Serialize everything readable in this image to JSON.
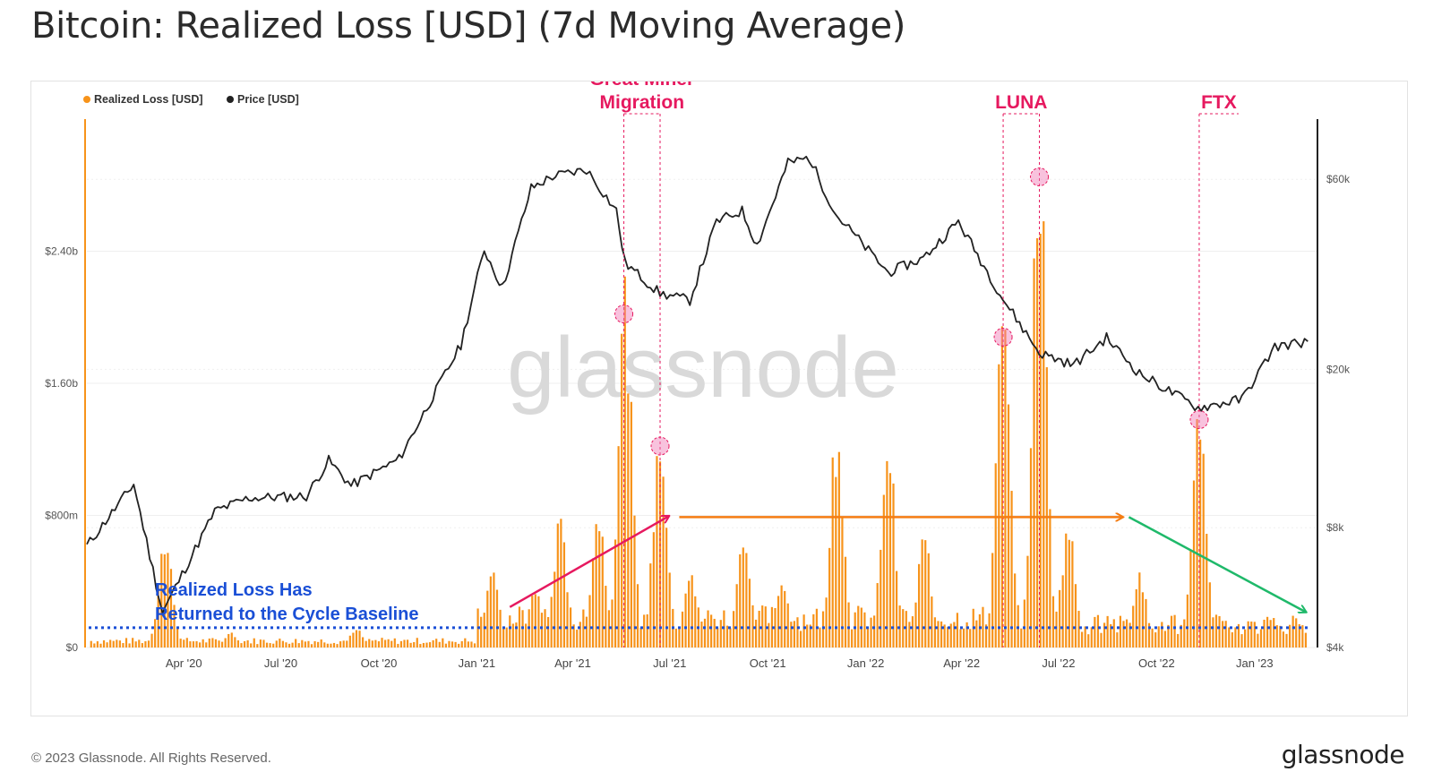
{
  "page": {
    "title": "Bitcoin: Realized Loss [USD] (7d Moving Average)",
    "footer": "© 2023 Glassnode. All Rights Reserved.",
    "brand": "glassnode",
    "watermark": "glassnode"
  },
  "colors": {
    "loss": "#f7931a",
    "price": "#222222",
    "annotation": "#e6195f",
    "baseline": "#1a4fd6",
    "trend_up": "#e6195f",
    "trend_flat": "#f47c12",
    "trend_down": "#1fb96a",
    "grid": "#efefef"
  },
  "chart_data": {
    "type": "bar+line",
    "legend_position": "top-left",
    "grid": true,
    "x_axis": {
      "ticks": [
        "Apr '20",
        "Jul '20",
        "Oct '20",
        "Jan '21",
        "Apr '21",
        "Jul '21",
        "Oct '21",
        "Jan '22",
        "Apr '22",
        "Jul '22",
        "Oct '22",
        "Jan '23"
      ],
      "range": [
        "2020-01-01",
        "2023-03-01"
      ]
    },
    "y_left": {
      "label": "Realized Loss [USD]",
      "ticks": [
        "$0",
        "$800m",
        "$1.60b",
        "$2.40b"
      ],
      "tick_values": [
        0,
        800,
        1600,
        2400
      ],
      "unit": "USD millions",
      "range": [
        0,
        3200
      ]
    },
    "y_right": {
      "label": "Price [USD]",
      "scale": "log",
      "ticks": [
        "$4k",
        "$8k",
        "$20k",
        "$60k"
      ],
      "tick_values": [
        4000,
        8000,
        20000,
        60000
      ],
      "range": [
        4000,
        85000
      ]
    },
    "series": [
      {
        "name": "Realized Loss [USD]",
        "type": "bar",
        "peaks": [
          {
            "date": "2020-03-15",
            "value": 620
          },
          {
            "date": "2020-05-15",
            "value": 80
          },
          {
            "date": "2020-09-10",
            "value": 100
          },
          {
            "date": "2021-01-15",
            "value": 420
          },
          {
            "date": "2021-02-25",
            "value": 340
          },
          {
            "date": "2021-03-20",
            "value": 700
          },
          {
            "date": "2021-04-25",
            "value": 780
          },
          {
            "date": "2021-05-20",
            "value": 2020
          },
          {
            "date": "2021-06-22",
            "value": 1220
          },
          {
            "date": "2021-07-20",
            "value": 420
          },
          {
            "date": "2021-09-08",
            "value": 640
          },
          {
            "date": "2021-10-15",
            "value": 350
          },
          {
            "date": "2021-12-05",
            "value": 1220
          },
          {
            "date": "2022-01-22",
            "value": 1200
          },
          {
            "date": "2022-02-25",
            "value": 640
          },
          {
            "date": "2022-05-10",
            "value": 1880
          },
          {
            "date": "2022-06-13",
            "value": 2850
          },
          {
            "date": "2022-07-10",
            "value": 700
          },
          {
            "date": "2022-09-15",
            "value": 420
          },
          {
            "date": "2022-11-10",
            "value": 1380
          },
          {
            "date": "2023-01-15",
            "value": 150
          }
        ]
      },
      {
        "name": "Price [USD]",
        "type": "line",
        "points": [
          {
            "date": "2020-01-01",
            "value": 7200
          },
          {
            "date": "2020-02-14",
            "value": 10300
          },
          {
            "date": "2020-03-12",
            "value": 4900
          },
          {
            "date": "2020-04-30",
            "value": 8800
          },
          {
            "date": "2020-06-01",
            "value": 9500
          },
          {
            "date": "2020-07-25",
            "value": 9600
          },
          {
            "date": "2020-08-15",
            "value": 11800
          },
          {
            "date": "2020-09-05",
            "value": 10200
          },
          {
            "date": "2020-10-20",
            "value": 11900
          },
          {
            "date": "2020-11-15",
            "value": 16000
          },
          {
            "date": "2020-12-17",
            "value": 23000
          },
          {
            "date": "2021-01-08",
            "value": 40000
          },
          {
            "date": "2021-01-25",
            "value": 32000
          },
          {
            "date": "2021-02-21",
            "value": 57000
          },
          {
            "date": "2021-03-13",
            "value": 61000
          },
          {
            "date": "2021-04-14",
            "value": 63500
          },
          {
            "date": "2021-05-12",
            "value": 50000
          },
          {
            "date": "2021-05-20",
            "value": 37000
          },
          {
            "date": "2021-06-22",
            "value": 31000
          },
          {
            "date": "2021-07-20",
            "value": 29800
          },
          {
            "date": "2021-08-14",
            "value": 47000
          },
          {
            "date": "2021-09-07",
            "value": 50000
          },
          {
            "date": "2021-09-21",
            "value": 41000
          },
          {
            "date": "2021-10-20",
            "value": 66000
          },
          {
            "date": "2021-11-09",
            "value": 68000
          },
          {
            "date": "2021-12-04",
            "value": 49000
          },
          {
            "date": "2022-01-22",
            "value": 35000
          },
          {
            "date": "2022-02-24",
            "value": 38000
          },
          {
            "date": "2022-03-29",
            "value": 47000
          },
          {
            "date": "2022-05-10",
            "value": 30000
          },
          {
            "date": "2022-06-13",
            "value": 22000
          },
          {
            "date": "2022-07-15",
            "value": 20500
          },
          {
            "date": "2022-08-15",
            "value": 24000
          },
          {
            "date": "2022-09-15",
            "value": 19500
          },
          {
            "date": "2022-11-09",
            "value": 16000
          },
          {
            "date": "2022-12-20",
            "value": 16800
          },
          {
            "date": "2023-01-20",
            "value": 22800
          },
          {
            "date": "2023-02-20",
            "value": 23500
          }
        ]
      }
    ],
    "annotations": [
      {
        "label_lines": [
          "Great Miner",
          "Migration"
        ],
        "dates": [
          "2021-05-19",
          "2021-06-22"
        ]
      },
      {
        "label_lines": [
          "LUNA"
        ],
        "dates": [
          "2022-05-10",
          "2022-06-13"
        ]
      },
      {
        "label_lines": [
          "FTX"
        ],
        "dates": [
          "2022-11-10"
        ]
      }
    ],
    "baseline": {
      "value": 120,
      "text_lines": [
        "Realized Loss Has",
        "Returned to the Cycle Baseline"
      ]
    }
  }
}
